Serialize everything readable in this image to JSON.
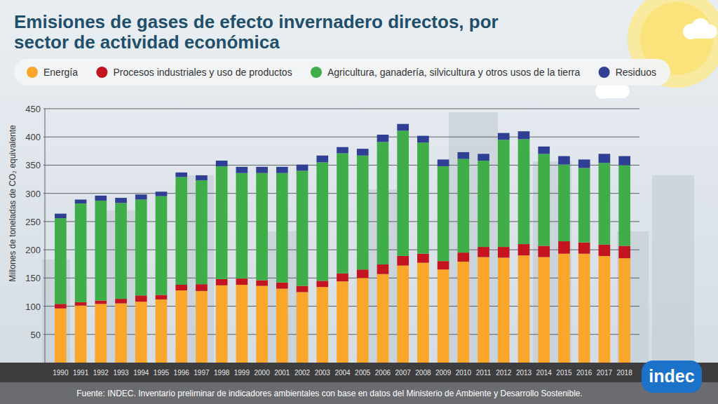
{
  "chart_data": {
    "type": "bar",
    "title": "Emisiones de gases de efecto invernadero directos, por sector de actividad económica",
    "y_label": "Millones de toneladas de CO₂ equivalente",
    "source": "Fuente: INDEC. Inventario preliminar de indicadores ambientales con base en datos del Ministerio de Ambiente y Desarrollo Sostenible.",
    "logo": "indec",
    "categories": [
      "1990",
      "1991",
      "1992",
      "1993",
      "1994",
      "1995",
      "1996",
      "1997",
      "1998",
      "1999",
      "2000",
      "2001",
      "2002",
      "2003",
      "2004",
      "2005",
      "2006",
      "2007",
      "2008",
      "2009",
      "2010",
      "2011",
      "2012",
      "2013",
      "2014",
      "2015",
      "2016",
      "2017",
      "2018"
    ],
    "series": [
      {
        "name": "Energía",
        "color": "#f9a62b",
        "values": [
          96,
          101,
          104,
          105,
          108,
          112,
          128,
          127,
          137,
          138,
          136,
          131,
          125,
          134,
          144,
          150,
          157,
          172,
          177,
          165,
          179,
          187,
          186,
          190,
          187,
          193,
          193,
          189,
          185
        ]
      },
      {
        "name": "Procesos industriales y uso de productos",
        "color": "#c3141f",
        "values": [
          8,
          6,
          6,
          8,
          11,
          8,
          10,
          12,
          11,
          11,
          10,
          11,
          11,
          11,
          14,
          15,
          17,
          17,
          16,
          15,
          16,
          18,
          19,
          20,
          20,
          22,
          20,
          20,
          22
        ]
      },
      {
        "name": "Agricultura, ganadería, silvicultura y otros usos de la tierra",
        "color": "#3fae49",
        "values": [
          152,
          175,
          177,
          170,
          170,
          175,
          191,
          184,
          200,
          187,
          190,
          194,
          204,
          210,
          213,
          202,
          217,
          222,
          197,
          168,
          166,
          153,
          190,
          186,
          163,
          136,
          132,
          145,
          143
        ]
      },
      {
        "name": "Residuos",
        "color": "#2f3f93",
        "values": [
          8,
          7,
          9,
          9,
          9,
          8,
          8,
          9,
          10,
          11,
          11,
          11,
          11,
          12,
          11,
          12,
          13,
          12,
          12,
          12,
          12,
          12,
          12,
          14,
          13,
          15,
          15,
          16,
          16
        ]
      }
    ],
    "ylim": [
      0,
      450
    ],
    "yticks": [
      50,
      100,
      150,
      200,
      250,
      300,
      350,
      400,
      450
    ],
    "stacked": true,
    "grid": true,
    "legend": "top"
  }
}
